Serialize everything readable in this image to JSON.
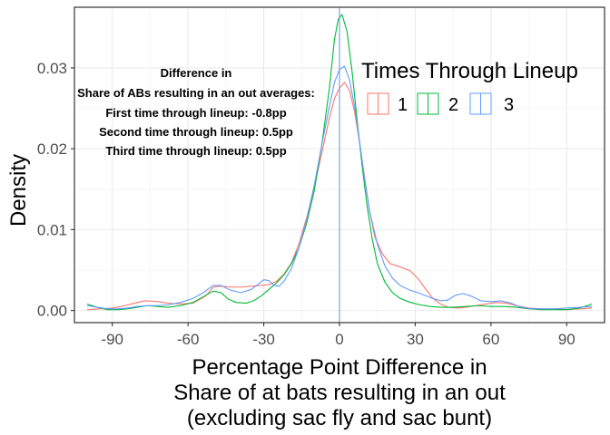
{
  "chart_data": {
    "type": "density",
    "xlabel_lines": [
      "Percentage Point Difference in",
      "Share of at bats resulting in an out",
      "(excluding sac fly and sac bunt)"
    ],
    "ylabel": "Density",
    "xlim": [
      -105,
      105
    ],
    "ylim": [
      -0.0015,
      0.0375
    ],
    "x_ticks": [
      -90,
      -60,
      -30,
      0,
      30,
      60,
      90
    ],
    "x_tick_labels": [
      "-90",
      "-60",
      "-30",
      "0",
      "30",
      "60",
      "90"
    ],
    "y_ticks": [
      0.0,
      0.01,
      0.02,
      0.03
    ],
    "y_tick_labels": [
      "0.00",
      "0.01",
      "0.02",
      "0.03"
    ],
    "grid": true,
    "vline": {
      "x": 0,
      "color": "#6b8fe0"
    },
    "annotation": [
      "Difference in",
      "Share of ABs resulting in an out averages:",
      "First time through lineup: -0.8pp",
      "Second time through lineup: 0.5pp",
      "Third time through lineup: 0.5pp"
    ],
    "legend": {
      "title": "Times Through Lineup",
      "position": "top-right"
    },
    "series": [
      {
        "name": "1",
        "color": "#F8766D",
        "points": [
          [
            -100,
            0.0001
          ],
          [
            -95,
            0.0002
          ],
          [
            -90,
            0.0003
          ],
          [
            -85,
            0.0006
          ],
          [
            -80,
            0.001
          ],
          [
            -77,
            0.0012
          ],
          [
            -72,
            0.0011
          ],
          [
            -68,
            0.0009
          ],
          [
            -63,
            0.0008
          ],
          [
            -58,
            0.0009
          ],
          [
            -53,
            0.0018
          ],
          [
            -50,
            0.0029
          ],
          [
            -47,
            0.003
          ],
          [
            -43,
            0.0029
          ],
          [
            -39,
            0.0029
          ],
          [
            -35,
            0.003
          ],
          [
            -31,
            0.0031
          ],
          [
            -28,
            0.0032
          ],
          [
            -25,
            0.0036
          ],
          [
            -22,
            0.0045
          ],
          [
            -19,
            0.0059
          ],
          [
            -16,
            0.0083
          ],
          [
            -13,
            0.0115
          ],
          [
            -10,
            0.0152
          ],
          [
            -7,
            0.0195
          ],
          [
            -4,
            0.0238
          ],
          [
            -2,
            0.0262
          ],
          [
            0,
            0.0275
          ],
          [
            2,
            0.0282
          ],
          [
            4,
            0.0272
          ],
          [
            6,
            0.0245
          ],
          [
            8,
            0.0207
          ],
          [
            10,
            0.0163
          ],
          [
            12,
            0.0122
          ],
          [
            14,
            0.0091
          ],
          [
            17,
            0.007
          ],
          [
            20,
            0.0058
          ],
          [
            24,
            0.0054
          ],
          [
            28,
            0.0049
          ],
          [
            31,
            0.004
          ],
          [
            34,
            0.0027
          ],
          [
            37,
            0.0015
          ],
          [
            40,
            0.0008
          ],
          [
            43,
            0.0004
          ],
          [
            47,
            0.0003
          ],
          [
            50,
            0.0004
          ],
          [
            54,
            0.0006
          ],
          [
            58,
            0.0008
          ],
          [
            62,
            0.001
          ],
          [
            66,
            0.0009
          ],
          [
            70,
            0.0006
          ],
          [
            75,
            0.0003
          ],
          [
            80,
            0.0002
          ],
          [
            85,
            0.0002
          ],
          [
            90,
            0.0001
          ],
          [
            95,
            0.0002
          ],
          [
            100,
            0.0003
          ]
        ]
      },
      {
        "name": "2",
        "color": "#00BA38",
        "points": [
          [
            -100,
            0.0008
          ],
          [
            -96,
            0.0004
          ],
          [
            -92,
            0.0001
          ],
          [
            -88,
            0.0001
          ],
          [
            -84,
            0.0002
          ],
          [
            -80,
            0.0004
          ],
          [
            -76,
            0.0006
          ],
          [
            -72,
            0.0005
          ],
          [
            -68,
            0.0004
          ],
          [
            -63,
            0.0006
          ],
          [
            -58,
            0.001
          ],
          [
            -54,
            0.0017
          ],
          [
            -50,
            0.0024
          ],
          [
            -47,
            0.0022
          ],
          [
            -44,
            0.0014
          ],
          [
            -41,
            0.001
          ],
          [
            -37,
            0.0009
          ],
          [
            -34,
            0.0012
          ],
          [
            -31,
            0.0018
          ],
          [
            -28,
            0.0026
          ],
          [
            -25,
            0.0034
          ],
          [
            -22,
            0.0044
          ],
          [
            -19,
            0.0058
          ],
          [
            -16,
            0.0078
          ],
          [
            -13,
            0.0108
          ],
          [
            -10,
            0.0148
          ],
          [
            -7,
            0.0205
          ],
          [
            -4,
            0.0275
          ],
          [
            -2,
            0.0335
          ],
          [
            -0.5,
            0.036
          ],
          [
            1,
            0.0366
          ],
          [
            3,
            0.0345
          ],
          [
            5,
            0.0295
          ],
          [
            7,
            0.0235
          ],
          [
            9,
            0.0178
          ],
          [
            11,
            0.0128
          ],
          [
            13,
            0.0088
          ],
          [
            15,
            0.0058
          ],
          [
            18,
            0.0035
          ],
          [
            21,
            0.0022
          ],
          [
            24,
            0.0015
          ],
          [
            28,
            0.001
          ],
          [
            32,
            0.0007
          ],
          [
            36,
            0.0005
          ],
          [
            40,
            0.0004
          ],
          [
            45,
            0.0004
          ],
          [
            50,
            0.0005
          ],
          [
            55,
            0.0006
          ],
          [
            60,
            0.0005
          ],
          [
            65,
            0.0005
          ],
          [
            70,
            0.0004
          ],
          [
            75,
            0.0002
          ],
          [
            80,
            0.0001
          ],
          [
            85,
            0.0001
          ],
          [
            90,
            0.0001
          ],
          [
            95,
            0.0003
          ],
          [
            100,
            0.0008
          ]
        ]
      },
      {
        "name": "3",
        "color": "#619CFF",
        "points": [
          [
            -100,
            0.0006
          ],
          [
            -96,
            0.0004
          ],
          [
            -92,
            0.0002
          ],
          [
            -88,
            0.0002
          ],
          [
            -84,
            0.0003
          ],
          [
            -80,
            0.0005
          ],
          [
            -76,
            0.0006
          ],
          [
            -72,
            0.0006
          ],
          [
            -68,
            0.0007
          ],
          [
            -63,
            0.001
          ],
          [
            -58,
            0.0015
          ],
          [
            -54,
            0.0022
          ],
          [
            -50,
            0.0031
          ],
          [
            -47,
            0.0031
          ],
          [
            -43,
            0.0025
          ],
          [
            -39,
            0.0022
          ],
          [
            -35,
            0.0026
          ],
          [
            -32,
            0.0033
          ],
          [
            -30,
            0.0038
          ],
          [
            -28,
            0.0037
          ],
          [
            -26,
            0.0031
          ],
          [
            -24,
            0.003
          ],
          [
            -22,
            0.0036
          ],
          [
            -19,
            0.0052
          ],
          [
            -16,
            0.0078
          ],
          [
            -13,
            0.0112
          ],
          [
            -10,
            0.0155
          ],
          [
            -7,
            0.0205
          ],
          [
            -4,
            0.0252
          ],
          [
            -2,
            0.0282
          ],
          [
            0,
            0.0298
          ],
          [
            2,
            0.0302
          ],
          [
            4,
            0.0285
          ],
          [
            6,
            0.0252
          ],
          [
            8,
            0.0208
          ],
          [
            10,
            0.0162
          ],
          [
            12,
            0.0122
          ],
          [
            15,
            0.0082
          ],
          [
            18,
            0.0055
          ],
          [
            21,
            0.004
          ],
          [
            24,
            0.0031
          ],
          [
            28,
            0.0025
          ],
          [
            32,
            0.0021
          ],
          [
            36,
            0.0016
          ],
          [
            40,
            0.0012
          ],
          [
            43,
            0.0013
          ],
          [
            46,
            0.0019
          ],
          [
            49,
            0.0021
          ],
          [
            52,
            0.0018
          ],
          [
            56,
            0.0012
          ],
          [
            60,
            0.0011
          ],
          [
            64,
            0.0012
          ],
          [
            68,
            0.0009
          ],
          [
            72,
            0.0004
          ],
          [
            76,
            0.0002
          ],
          [
            80,
            0.0002
          ],
          [
            85,
            0.0002
          ],
          [
            90,
            0.0003
          ],
          [
            95,
            0.0004
          ],
          [
            100,
            0.0005
          ]
        ]
      }
    ]
  }
}
